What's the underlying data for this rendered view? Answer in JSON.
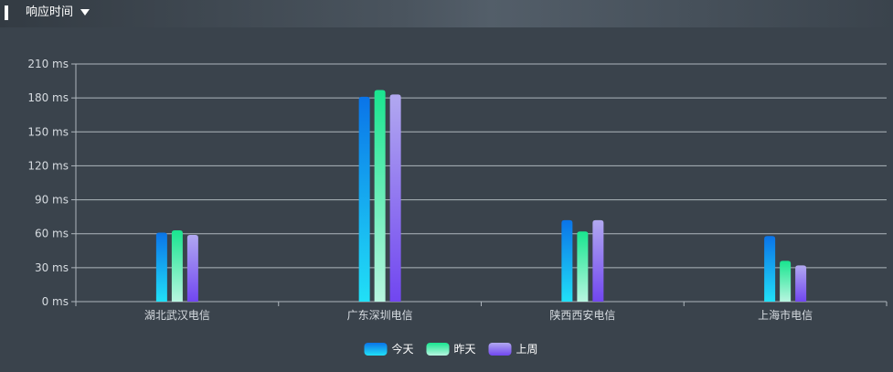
{
  "header": {
    "title": "响应时间"
  },
  "chart_data": {
    "type": "bar",
    "categories": [
      "湖北武汉电信",
      "广东深圳电信",
      "陕西西安电信",
      "上海市电信"
    ],
    "series": [
      {
        "name": "今天",
        "values": [
          61,
          181,
          72,
          58
        ]
      },
      {
        "name": "昨天",
        "values": [
          63,
          187,
          62,
          36
        ]
      },
      {
        "name": "上周",
        "values": [
          59,
          183,
          72,
          32
        ]
      }
    ],
    "yticks": [
      "0 ms",
      "30 ms",
      "60 ms",
      "90 ms",
      "120 ms",
      "150 ms",
      "180 ms",
      "210 ms"
    ],
    "ylim": [
      0,
      210
    ],
    "grid": true,
    "legend": "bottom-center",
    "colors": {
      "今天": [
        "#0a74e8",
        "#21e0f7"
      ],
      "昨天": [
        "#19e58f",
        "#b8f5e0"
      ],
      "上周": [
        "#b1a8f0",
        "#7146f0"
      ]
    }
  }
}
